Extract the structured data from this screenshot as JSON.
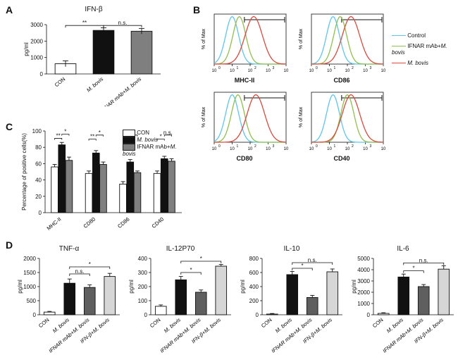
{
  "figure": {
    "panels": [
      "A",
      "B",
      "C",
      "D"
    ]
  },
  "panelA": {
    "title": "IFN-β",
    "ylabel": "pg/ml",
    "ylim": [
      0,
      3000
    ],
    "ytick_step": 1000,
    "categories": [
      "CON",
      "M. bovis",
      "IFNAR mAb+M. bovis"
    ],
    "values": [
      620,
      2650,
      2600
    ],
    "errors": [
      180,
      160,
      170
    ],
    "bar_colors": [
      "#ffffff",
      "#111111",
      "#7f7f7f"
    ],
    "sig": [
      {
        "from": 0,
        "to": 1,
        "label": "**",
        "y": 2950
      },
      {
        "from": 1,
        "to": 2,
        "label": "n.s.",
        "y": 2950
      }
    ]
  },
  "panelB": {
    "markers": [
      "MHC-II",
      "CD86",
      "CD80",
      "CD40"
    ],
    "legend": [
      {
        "label": "Control",
        "color": "#5cc6ec"
      },
      {
        "label": "IFNAR mAb+M. bovis",
        "color": "#8fbf4b"
      },
      {
        "label": "M. bovis",
        "color": "#d94a3f"
      }
    ],
    "ylab": "% of Max",
    "xlabel_decades": [
      "10^0",
      "10^1",
      "10^2",
      "10^3",
      "10^4"
    ]
  },
  "panelC": {
    "ylabel": "Percentage of positive cells(%)",
    "ylim": [
      0,
      100
    ],
    "ytick_step": 20,
    "groups": [
      "MHC-II",
      "CD80",
      "CD86",
      "CD40"
    ],
    "legend": [
      {
        "label": "CON",
        "color": "#ffffff"
      },
      {
        "label": "M. bovis",
        "color": "#111111"
      },
      {
        "label": "IFNAR mAb+M. bovis",
        "color": "#7f7f7f"
      }
    ],
    "series": {
      "CON": [
        56,
        48,
        35,
        48
      ],
      "Mbovis": [
        83,
        73,
        62,
        66
      ],
      "IFNAR": [
        64,
        59,
        49,
        63
      ]
    },
    "errors": {
      "CON": [
        3,
        3,
        3,
        3
      ],
      "Mbovis": [
        3,
        3,
        3,
        3
      ],
      "IFNAR": [
        4,
        3,
        2,
        3
      ]
    },
    "sig": [
      {
        "group": 0,
        "pairs": [
          [
            "**",
            "*"
          ]
        ]
      },
      {
        "group": 1,
        "pairs": [
          [
            "**",
            "*"
          ]
        ]
      },
      {
        "group": 2,
        "pairs": [
          [
            "**",
            "*"
          ]
        ]
      },
      {
        "group": 3,
        "pairs": [
          [
            "*",
            "n.s."
          ]
        ]
      }
    ]
  },
  "panelD": {
    "charts": [
      {
        "title": "TNF-α",
        "ylabel": "pg/ml",
        "ylim": [
          0,
          2000
        ],
        "ytick_step": 500,
        "values": [
          95,
          1120,
          970,
          1360
        ],
        "errors": [
          25,
          150,
          90,
          110
        ],
        "sig": [
          {
            "from": 1,
            "to": 2,
            "label": "n.s.",
            "y": 1450
          },
          {
            "from": 1,
            "to": 3,
            "label": "*",
            "y": 1700
          }
        ]
      },
      {
        "title": "IL-12P70",
        "ylabel": "pg/ml",
        "ylim": [
          0,
          400
        ],
        "ytick_step": 100,
        "values": [
          60,
          248,
          160,
          345
        ],
        "errors": [
          10,
          24,
          16,
          12
        ],
        "sig": [
          {
            "from": 1,
            "to": 2,
            "label": "*",
            "y": 300
          },
          {
            "from": 1,
            "to": 3,
            "label": "*",
            "y": 380
          }
        ]
      },
      {
        "title": "IL-10",
        "ylabel": "pg/ml",
        "ylim": [
          0,
          800
        ],
        "ytick_step": 200,
        "values": [
          10,
          570,
          245,
          610
        ],
        "errors": [
          8,
          45,
          30,
          40
        ],
        "sig": [
          {
            "from": 1,
            "to": 2,
            "label": "*",
            "y": 660
          },
          {
            "from": 1,
            "to": 3,
            "label": "n.s.",
            "y": 740
          }
        ]
      },
      {
        "title": "IL-6",
        "ylabel": "pg/ml",
        "ylim": [
          0,
          5000
        ],
        "ytick_step": 1000,
        "values": [
          120,
          3350,
          2500,
          4050
        ],
        "errors": [
          60,
          260,
          180,
          300
        ],
        "sig": [
          {
            "from": 1,
            "to": 2,
            "label": "*",
            "y": 3900
          },
          {
            "from": 1,
            "to": 3,
            "label": "n.s.",
            "y": 4600
          }
        ]
      }
    ],
    "categories": [
      "CON",
      "M. bovis",
      "IFNAR mAb+M. bovis",
      "IFN-β+M. bovis"
    ],
    "bar_colors": [
      "#ffffff",
      "#111111",
      "#605f5f",
      "#d6d6d6"
    ]
  }
}
